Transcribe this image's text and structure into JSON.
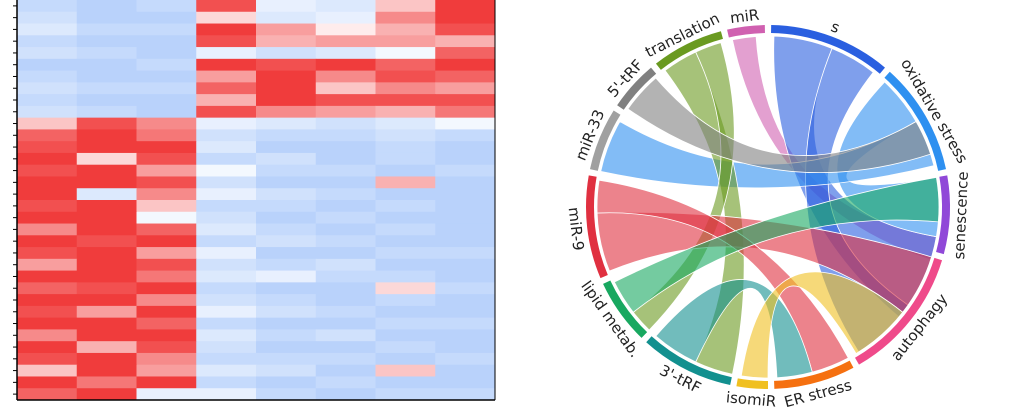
{
  "chart_data": [
    {
      "type": "heatmap",
      "columns": 8,
      "color_scale": {
        "low": "#8ab4f8",
        "mid": "#ffffff",
        "high": "#f03c3c"
      },
      "values": [
        [
          -0.5,
          -0.6,
          -0.5,
          0.9,
          -0.2,
          -0.3,
          0.3,
          1.0
        ],
        [
          -0.4,
          -0.6,
          -0.6,
          0.2,
          -0.3,
          -0.2,
          0.6,
          1.0
        ],
        [
          -0.3,
          -0.5,
          -0.5,
          1.0,
          0.5,
          0.1,
          0.4,
          0.9
        ],
        [
          -0.5,
          -0.6,
          -0.6,
          0.9,
          0.4,
          0.5,
          0.5,
          0.4
        ],
        [
          -0.4,
          -0.5,
          -0.6,
          -0.2,
          -0.4,
          -0.3,
          -0.1,
          0.8
        ],
        [
          -0.6,
          -0.6,
          -0.5,
          1.0,
          0.9,
          1.0,
          0.8,
          1.0
        ],
        [
          -0.5,
          -0.6,
          -0.6,
          0.5,
          1.0,
          0.6,
          0.9,
          0.8
        ],
        [
          -0.4,
          -0.5,
          -0.5,
          0.8,
          1.0,
          0.3,
          0.6,
          0.5
        ],
        [
          -0.5,
          -0.6,
          -0.6,
          0.4,
          1.0,
          0.9,
          0.9,
          0.9
        ],
        [
          -0.4,
          -0.5,
          -0.6,
          0.9,
          0.6,
          0.5,
          0.4,
          0.7
        ],
        [
          0.3,
          0.9,
          0.6,
          -0.2,
          -0.3,
          -0.4,
          -0.3,
          -0.1
        ],
        [
          0.8,
          1.0,
          0.7,
          -0.4,
          -0.5,
          -0.5,
          -0.4,
          -0.5
        ],
        [
          0.9,
          1.0,
          1.0,
          -0.3,
          -0.6,
          -0.6,
          -0.5,
          -0.6
        ],
        [
          1.0,
          0.2,
          0.9,
          -0.5,
          -0.4,
          -0.6,
          -0.5,
          -0.6
        ],
        [
          0.9,
          1.0,
          0.5,
          -0.1,
          -0.5,
          -0.5,
          -0.6,
          -0.5
        ],
        [
          1.0,
          1.0,
          0.9,
          -0.4,
          -0.6,
          -0.6,
          0.4,
          -0.6
        ],
        [
          1.0,
          -0.3,
          0.6,
          -0.2,
          -0.4,
          -0.5,
          -0.6,
          -0.6
        ],
        [
          0.9,
          1.0,
          0.3,
          -0.5,
          -0.5,
          -0.6,
          -0.5,
          -0.6
        ],
        [
          1.0,
          1.0,
          -0.1,
          -0.4,
          -0.6,
          -0.5,
          -0.6,
          -0.6
        ],
        [
          0.6,
          1.0,
          0.8,
          -0.3,
          -0.5,
          -0.6,
          -0.5,
          -0.6
        ],
        [
          1.0,
          0.9,
          1.0,
          -0.5,
          -0.4,
          -0.5,
          -0.6,
          -0.6
        ],
        [
          0.9,
          1.0,
          0.5,
          -0.2,
          -0.6,
          -0.6,
          -0.5,
          -0.5
        ],
        [
          0.5,
          1.0,
          0.9,
          -0.4,
          -0.5,
          -0.4,
          -0.6,
          -0.6
        ],
        [
          1.0,
          1.0,
          0.7,
          -0.3,
          -0.2,
          -0.5,
          -0.5,
          -0.6
        ],
        [
          0.8,
          0.9,
          1.0,
          -0.5,
          -0.6,
          -0.6,
          0.2,
          -0.5
        ],
        [
          1.0,
          1.0,
          0.6,
          -0.4,
          -0.5,
          -0.6,
          -0.5,
          -0.6
        ],
        [
          0.9,
          0.5,
          1.0,
          -0.2,
          -0.4,
          -0.5,
          -0.6,
          -0.6
        ],
        [
          1.0,
          1.0,
          0.8,
          -0.5,
          -0.6,
          -0.6,
          -0.5,
          -0.5
        ],
        [
          0.6,
          1.0,
          1.0,
          -0.3,
          -0.5,
          -0.4,
          -0.6,
          -0.6
        ],
        [
          1.0,
          0.4,
          0.9,
          -0.4,
          -0.6,
          -0.6,
          -0.5,
          -0.6
        ],
        [
          0.9,
          1.0,
          0.6,
          -0.5,
          -0.5,
          -0.5,
          -0.6,
          -0.5
        ],
        [
          0.3,
          1.0,
          0.5,
          -0.3,
          -0.4,
          -0.6,
          0.3,
          -0.6
        ],
        [
          1.0,
          0.7,
          1.0,
          -0.5,
          -0.6,
          -0.5,
          -0.6,
          -0.6
        ],
        [
          0.8,
          1.0,
          -0.2,
          -0.2,
          -0.5,
          -0.6,
          -0.5,
          -0.5
        ]
      ]
    },
    {
      "type": "chord",
      "segments": [
        {
          "label": "miR",
          "start": 347,
          "end": 359,
          "color": "#d060b0"
        },
        {
          "label": "s",
          "start": 1,
          "end": 40,
          "color": "#2a5fe0"
        },
        {
          "label": "oxidative stress",
          "start": 42,
          "end": 78,
          "color": "#2e90f0"
        },
        {
          "label": "senescence",
          "start": 80,
          "end": 105,
          "color": "#9048d8"
        },
        {
          "label": "autophagy",
          "start": 107,
          "end": 150,
          "color": "#ef4a8a"
        },
        {
          "label": "ER stress",
          "start": 152,
          "end": 178,
          "color": "#f57010"
        },
        {
          "label": "isomiR",
          "start": 180,
          "end": 190,
          "color": "#f0c020"
        },
        {
          "label": "3'-tRF",
          "start": 192,
          "end": 222,
          "color": "#12908f"
        },
        {
          "label": "lipid metab.",
          "start": 224,
          "end": 245,
          "color": "#18a860"
        },
        {
          "label": "miR-9",
          "start": 247,
          "end": 280,
          "color": "#e03040"
        },
        {
          "label": "miR-33",
          "start": 282,
          "end": 302,
          "color": "#a0a0a0"
        },
        {
          "label": "5'-tRF",
          "start": 304,
          "end": 320,
          "color": "#808080"
        },
        {
          "label": "translation",
          "start": 322,
          "end": 345,
          "color": "#6a9a20"
        }
      ],
      "links": [
        {
          "from": [
            348,
            356
          ],
          "to": [
            100,
            108
          ]
        },
        {
          "from": [
            2,
            22
          ],
          "to": [
            100,
            130
          ]
        },
        {
          "from": [
            22,
            38
          ],
          "to": [
            125,
            148
          ]
        },
        {
          "from": [
            43,
            60
          ],
          "to": [
            80,
            100
          ]
        },
        {
          "from": [
            60,
            76
          ],
          "to": [
            282,
            300
          ]
        },
        {
          "from": [
            323,
            335
          ],
          "to": [
            192,
            205
          ]
        },
        {
          "from": [
            335,
            344
          ],
          "to": [
            224,
            232
          ]
        },
        {
          "from": [
            305,
            319
          ],
          "to": [
            60,
            72
          ]
        },
        {
          "from": [
            248,
            268
          ],
          "to": [
            107,
            128
          ]
        },
        {
          "from": [
            268,
            279
          ],
          "to": [
            152,
            165
          ]
        },
        {
          "from": [
            232,
            244
          ],
          "to": [
            80,
            95
          ]
        },
        {
          "from": [
            205,
            221
          ],
          "to": [
            165,
            177
          ]
        },
        {
          "from": [
            180,
            189
          ],
          "to": [
            128,
            149
          ]
        }
      ]
    }
  ]
}
